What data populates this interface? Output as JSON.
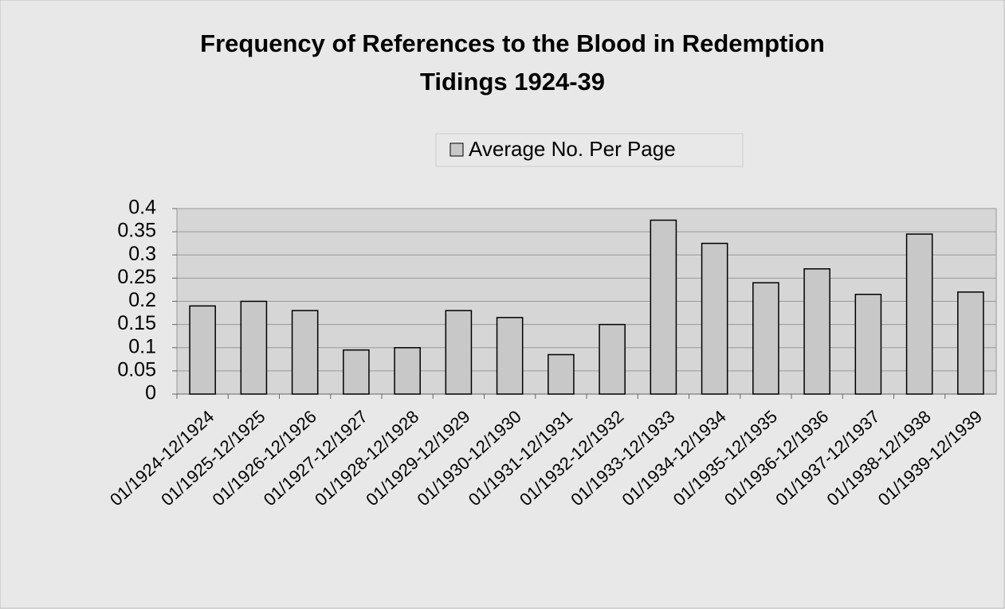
{
  "chart_data": {
    "type": "bar",
    "title": [
      "Frequency of References to the Blood in Redemption",
      "Tidings 1924-39"
    ],
    "categories": [
      "01/1924-12/1924",
      "01/1925-12/1925",
      "01/1926-12/1926",
      "01/1927-12/1927",
      "01/1928-12/1928",
      "01/1929-12/1929",
      "01/1930-12/1930",
      "01/1931-12/1931",
      "01/1932-12/1932",
      "01/1933-12/1933",
      "01/1934-12/1934",
      "01/1935-12/1935",
      "01/1936-12/1936",
      "01/1937-12/1937",
      "01/1938-12/1938",
      "01/1939-12/1939"
    ],
    "series": [
      {
        "name": "Average No. Per Page",
        "color": "#c8c8c8",
        "values": [
          0.19,
          0.2,
          0.18,
          0.095,
          0.1,
          0.18,
          0.165,
          0.085,
          0.15,
          0.375,
          0.325,
          0.24,
          0.27,
          0.215,
          0.345,
          0.22
        ]
      }
    ],
    "ylim": [
      0,
      0.4
    ],
    "yticks": [
      0,
      0.05,
      0.1,
      0.15,
      0.2,
      0.25,
      0.3,
      0.35,
      0.4
    ],
    "grid": true,
    "legend": "top"
  }
}
